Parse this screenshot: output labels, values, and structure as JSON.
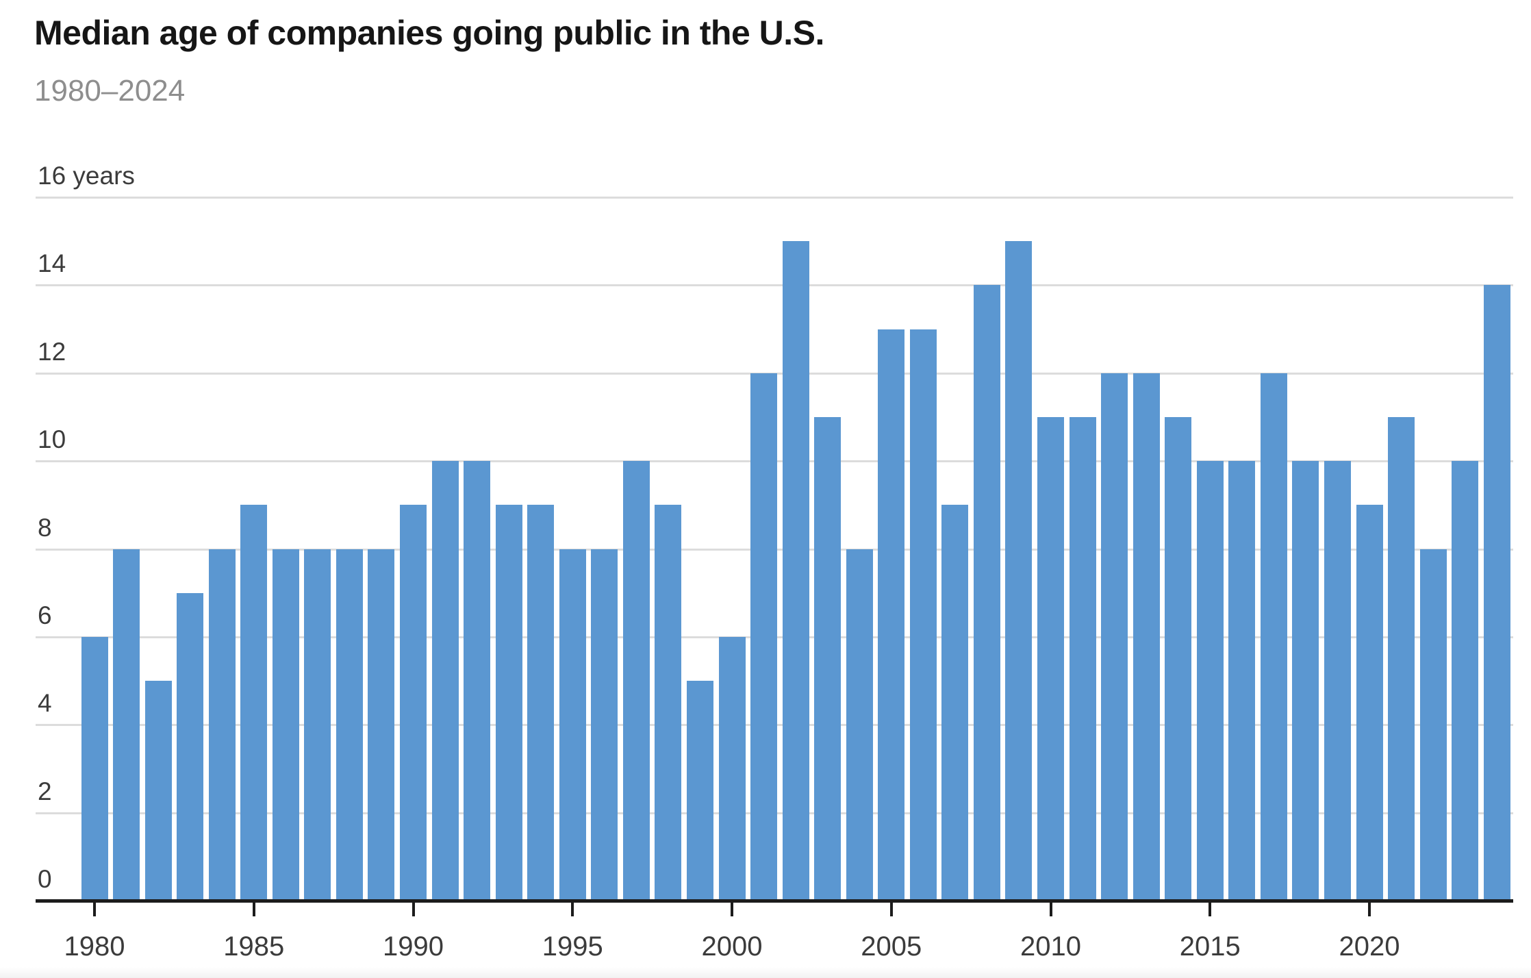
{
  "header": {
    "title": "Median age of companies going public in the U.S.",
    "subtitle": "1980–2024"
  },
  "chart_data": {
    "type": "bar",
    "title": "Median age of companies going public in the U.S.",
    "subtitle": "1980–2024",
    "x": [
      1980,
      1981,
      1982,
      1983,
      1984,
      1985,
      1986,
      1987,
      1988,
      1989,
      1990,
      1991,
      1992,
      1993,
      1994,
      1995,
      1996,
      1997,
      1998,
      1999,
      2000,
      2001,
      2002,
      2003,
      2004,
      2005,
      2006,
      2007,
      2008,
      2009,
      2010,
      2011,
      2012,
      2013,
      2014,
      2015,
      2016,
      2017,
      2018,
      2019,
      2020,
      2021,
      2022,
      2023,
      2024
    ],
    "values": [
      6,
      8,
      5,
      7,
      8,
      9,
      8,
      8,
      8,
      8,
      9,
      10,
      10,
      9,
      9,
      8,
      8,
      10,
      9,
      5,
      6,
      12,
      15,
      11,
      8,
      13,
      13,
      9,
      14,
      15,
      11,
      11,
      12,
      12,
      11,
      10,
      10,
      12,
      10,
      10,
      9,
      11,
      8,
      10,
      14
    ],
    "xlabel": "",
    "ylabel": "years",
    "ylim": [
      0,
      16
    ],
    "y_ticks": [
      0,
      2,
      4,
      6,
      8,
      10,
      12,
      14,
      16
    ],
    "y_top_tick_label": "16 years",
    "x_ticks": [
      1980,
      1985,
      1990,
      1995,
      2000,
      2005,
      2010,
      2015,
      2020
    ],
    "grid": "horizontal",
    "legend": "none",
    "colors": {
      "bar": "#5b97d1",
      "axis": "#1c1c1c",
      "gridline": "#dcdcdc",
      "title": "#161616",
      "subtitle": "#8e8e8e",
      "tick_label": "#3b3b3b"
    }
  }
}
